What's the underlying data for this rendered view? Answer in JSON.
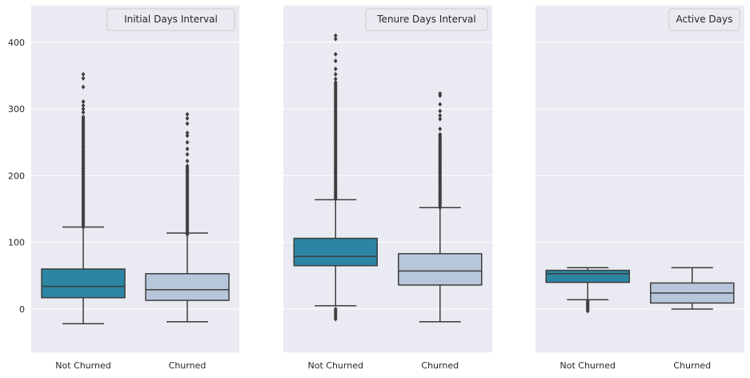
{
  "chart_data": [
    {
      "type": "box",
      "legend_title": "Initial Days Interval",
      "categories": [
        "Not Churned",
        "Churned"
      ],
      "ylim": [
        -65,
        455
      ],
      "yticks": [
        0,
        100,
        200,
        300,
        400
      ],
      "grid": true,
      "legend_position": "top-right",
      "boxes": [
        {
          "category": "Not Churned",
          "color": "#2c86a3",
          "whisker_low": -22,
          "q1": 17,
          "median": 34,
          "q3": 60,
          "whisker_high": 123,
          "outliers_dense_range": [
            123,
            290
          ],
          "outliers": [
            295,
            300,
            305,
            311,
            333,
            346,
            352
          ]
        },
        {
          "category": "Churned",
          "color": "#b8c6dc",
          "whisker_low": -19,
          "q1": 13,
          "median": 29,
          "q3": 53,
          "whisker_high": 114,
          "outliers_dense_range": [
            112,
            215
          ],
          "outliers": [
            222,
            232,
            240,
            250,
            260,
            264,
            278,
            286,
            292
          ]
        }
      ]
    },
    {
      "type": "box",
      "legend_title": "Tenure Days Interval",
      "categories": [
        "Not Churned",
        "Churned"
      ],
      "ylim": [
        -65,
        455
      ],
      "yticks": [
        0,
        100,
        200,
        300,
        400
      ],
      "grid": true,
      "legend_position": "top-right",
      "boxes": [
        {
          "category": "Not Churned",
          "color": "#2c86a3",
          "whisker_low": 5,
          "q1": 65,
          "median": 79,
          "q3": 106,
          "whisker_high": 164,
          "outliers_dense_range": [
            165,
            340
          ],
          "outliers": [
            -15,
            -12,
            -9,
            -6,
            -3,
            0,
            345,
            352,
            360,
            372,
            382,
            405,
            410
          ]
        },
        {
          "category": "Churned",
          "color": "#b8c6dc",
          "whisker_low": -19,
          "q1": 36,
          "median": 57,
          "q3": 83,
          "whisker_high": 152,
          "outliers_dense_range": [
            152,
            262
          ],
          "outliers": [
            270,
            285,
            290,
            297,
            307,
            320,
            323
          ]
        }
      ]
    },
    {
      "type": "box",
      "legend_title": "Active Days",
      "categories": [
        "Not Churned",
        "Churned"
      ],
      "ylim": [
        -65,
        455
      ],
      "yticks": [
        0,
        100,
        200,
        300,
        400
      ],
      "grid": true,
      "legend_position": "top-right",
      "boxes": [
        {
          "category": "Not Churned",
          "color": "#2c86a3",
          "whisker_low": 14,
          "q1": 40,
          "median": 53,
          "q3": 58,
          "whisker_high": 62,
          "outliers_dense_range": [
            -3,
            13
          ],
          "outliers": []
        },
        {
          "category": "Churned",
          "color": "#b8c6dc",
          "whisker_low": 0,
          "q1": 9,
          "median": 24,
          "q3": 39,
          "whisker_high": 62,
          "outliers_dense_range": [],
          "outliers": []
        }
      ]
    }
  ]
}
